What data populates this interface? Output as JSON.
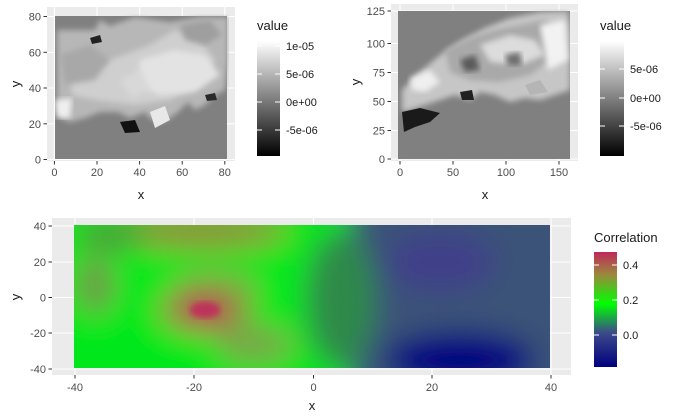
{
  "chart_data": [
    {
      "type": "heatmap",
      "panel": "top-left",
      "xlabel": "x",
      "ylabel": "y",
      "xlim": [
        -1,
        82
      ],
      "ylim": [
        -2,
        82
      ],
      "x_ticks": [
        0,
        20,
        40,
        60,
        80
      ],
      "y_ticks": [
        0,
        20,
        40,
        60,
        80
      ],
      "x_tick_labels": [
        "0",
        "20",
        "40",
        "60",
        "80"
      ],
      "y_tick_labels": [
        "0",
        "20",
        "40",
        "60",
        "80"
      ],
      "legend": {
        "title": "value",
        "position": "right",
        "range": [
          -8e-06,
          1.1e-05
        ],
        "ticks": [
          1e-05,
          5e-06,
          0,
          -5e-06
        ],
        "tick_labels": [
          "1e-05",
          "5e-06",
          "0e+00",
          "-5e-06"
        ],
        "colors": [
          "#000000",
          "#ffffff"
        ]
      },
      "grid": true
    },
    {
      "type": "heatmap",
      "panel": "top-right",
      "xlabel": "x",
      "ylabel": "y",
      "xlim": [
        -2,
        162
      ],
      "ylim": [
        -3,
        127
      ],
      "x_ticks": [
        0,
        50,
        100,
        150
      ],
      "y_ticks": [
        0,
        25,
        50,
        75,
        100,
        125
      ],
      "x_tick_labels": [
        "0",
        "50",
        "100",
        "150"
      ],
      "y_tick_labels": [
        "0",
        "25",
        "50",
        "75",
        "100",
        "125"
      ],
      "legend": {
        "title": "value",
        "position": "right",
        "range": [
          -9e-06,
          9e-06
        ],
        "ticks": [
          5e-06,
          0,
          -5e-06
        ],
        "tick_labels": [
          "5e-06",
          "0e+00",
          "-5e-06"
        ],
        "colors": [
          "#000000",
          "#ffffff"
        ]
      },
      "grid": true
    },
    {
      "type": "heatmap",
      "panel": "bottom",
      "xlabel": "x",
      "ylabel": "y",
      "xlim": [
        -44,
        44
      ],
      "ylim": [
        -43,
        43
      ],
      "x_ticks": [
        -40,
        -20,
        0,
        20,
        40
      ],
      "y_ticks": [
        -40,
        -20,
        0,
        20,
        40
      ],
      "x_tick_labels": [
        "-40",
        "-20",
        "0",
        "20",
        "40"
      ],
      "y_tick_labels": [
        "-40",
        "-20",
        "0",
        "20",
        "40"
      ],
      "legend": {
        "title": "Correlation",
        "position": "right",
        "range": [
          -0.15,
          0.5
        ],
        "ticks": [
          0.4,
          0.2,
          0.0
        ],
        "tick_labels": [
          "0.4",
          "0.2",
          "0.0"
        ],
        "colors": [
          "#00007f",
          "#00ff00",
          "#c0285a"
        ]
      },
      "grid": true
    }
  ]
}
